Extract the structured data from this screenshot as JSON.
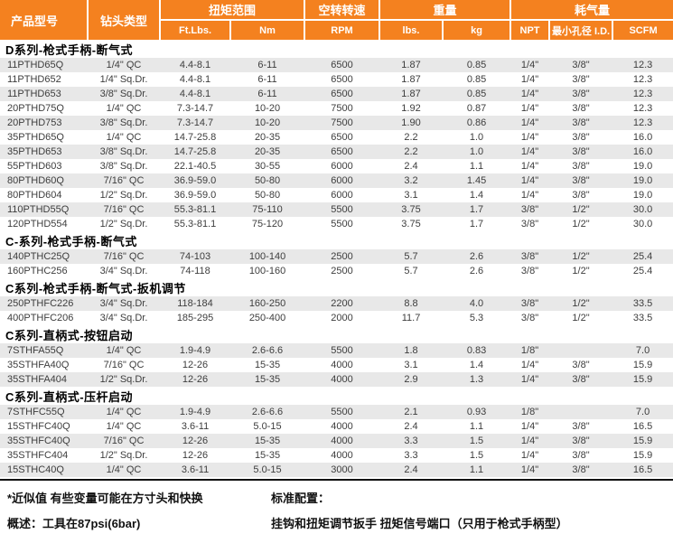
{
  "header": {
    "product_model": "产品型号",
    "drill_type": "钻头类型",
    "torque_range": "扭矩范围",
    "free_speed": "空转转速",
    "weight": "重量",
    "air_consumption": "耗气量",
    "sub": {
      "ftlbs": "Ft.Lbs.",
      "nm": "Nm",
      "rpm": "RPM",
      "lbs": "lbs.",
      "kg": "kg",
      "npt": "NPT",
      "min_id": "最小孔径 I.D.",
      "scfm": "SCFM"
    }
  },
  "sections": [
    {
      "title": "D系列-枪式手柄-断气式",
      "rows": [
        [
          "11PTHD65Q",
          "1/4\" QC",
          "4.4-8.1",
          "6-11",
          "6500",
          "1.87",
          "0.85",
          "1/4\"",
          "3/8\"",
          "12.3"
        ],
        [
          "11PTHD652",
          "1/4\" Sq.Dr.",
          "4.4-8.1",
          "6-11",
          "6500",
          "1.87",
          "0.85",
          "1/4\"",
          "3/8\"",
          "12.3"
        ],
        [
          "11PTHD653",
          "3/8\" Sq.Dr.",
          "4.4-8.1",
          "6-11",
          "6500",
          "1.87",
          "0.85",
          "1/4\"",
          "3/8\"",
          "12.3"
        ],
        [
          "20PTHD75Q",
          "1/4\" QC",
          "7.3-14.7",
          "10-20",
          "7500",
          "1.92",
          "0.87",
          "1/4\"",
          "3/8\"",
          "12.3"
        ],
        [
          "20PTHD753",
          "3/8\" Sq.Dr.",
          "7.3-14.7",
          "10-20",
          "7500",
          "1.90",
          "0.86",
          "1/4\"",
          "3/8\"",
          "12.3"
        ],
        [
          "35PTHD65Q",
          "1/4\" QC",
          "14.7-25.8",
          "20-35",
          "6500",
          "2.2",
          "1.0",
          "1/4\"",
          "3/8\"",
          "16.0"
        ],
        [
          "35PTHD653",
          "3/8\" Sq.Dr.",
          "14.7-25.8",
          "20-35",
          "6500",
          "2.2",
          "1.0",
          "1/4\"",
          "3/8\"",
          "16.0"
        ],
        [
          "55PTHD603",
          "3/8\" Sq.Dr.",
          "22.1-40.5",
          "30-55",
          "6000",
          "2.4",
          "1.1",
          "1/4\"",
          "3/8\"",
          "19.0"
        ],
        [
          "80PTHD60Q",
          "7/16\" QC",
          "36.9-59.0",
          "50-80",
          "6000",
          "3.2",
          "1.45",
          "1/4\"",
          "3/8\"",
          "19.0"
        ],
        [
          "80PTHD604",
          "1/2\" Sq.Dr.",
          "36.9-59.0",
          "50-80",
          "6000",
          "3.1",
          "1.4",
          "1/4\"",
          "3/8\"",
          "19.0"
        ],
        [
          "110PTHD55Q",
          "7/16\" QC",
          "55.3-81.1",
          "75-110",
          "5500",
          "3.75",
          "1.7",
          "3/8\"",
          "1/2\"",
          "30.0"
        ],
        [
          "120PTHD554",
          "1/2\" Sq.Dr.",
          "55.3-81.1",
          "75-120",
          "5500",
          "3.75",
          "1.7",
          "3/8\"",
          "1/2\"",
          "30.0"
        ]
      ]
    },
    {
      "title": "C-系列-枪式手柄-断气式",
      "rows": [
        [
          "140PTHC25Q",
          "7/16\" QC",
          "74-103",
          "100-140",
          "2500",
          "5.7",
          "2.6",
          "3/8\"",
          "1/2\"",
          "25.4"
        ],
        [
          "160PTHC256",
          "3/4\" Sq.Dr.",
          "74-118",
          "100-160",
          "2500",
          "5.7",
          "2.6",
          "3/8\"",
          "1/2\"",
          "25.4"
        ]
      ]
    },
    {
      "title": "C系列-枪式手柄-断气式-扳机调节",
      "rows": [
        [
          "250PTHFC226",
          "3/4\" Sq.Dr.",
          "118-184",
          "160-250",
          "2200",
          "8.8",
          "4.0",
          "3/8\"",
          "1/2\"",
          "33.5"
        ],
        [
          "400PTHFC206",
          "3/4\" Sq.Dr.",
          "185-295",
          "250-400",
          "2000",
          "11.7",
          "5.3",
          "3/8\"",
          "1/2\"",
          "33.5"
        ]
      ]
    },
    {
      "title": "C系列-直柄式-按钮启动",
      "rows": [
        [
          "7STHFA55Q",
          "1/4\" QC",
          "1.9-4.9",
          "2.6-6.6",
          "5500",
          "1.8",
          "0.83",
          "1/8\"",
          "",
          "7.0"
        ],
        [
          "35STHFA40Q",
          "7/16\" QC",
          "12-26",
          "15-35",
          "4000",
          "3.1",
          "1.4",
          "1/4\"",
          "3/8\"",
          "15.9"
        ],
        [
          "35STHFA404",
          "1/2\" Sq.Dr.",
          "12-26",
          "15-35",
          "4000",
          "2.9",
          "1.3",
          "1/4\"",
          "3/8\"",
          "15.9"
        ]
      ]
    },
    {
      "title": "C系列-直柄式-压杆启动",
      "rows": [
        [
          "7STHFC55Q",
          "1/4\" QC",
          "1.9-4.9",
          "2.6-6.6",
          "5500",
          "2.1",
          "0.93",
          "1/8\"",
          "",
          "7.0"
        ],
        [
          "15STHFC40Q",
          "1/4\" QC",
          "3.6-11",
          "5.0-15",
          "4000",
          "2.4",
          "1.1",
          "1/4\"",
          "3/8\"",
          "16.5"
        ],
        [
          "35STHFC40Q",
          "7/16\" QC",
          "12-26",
          "15-35",
          "4000",
          "3.3",
          "1.5",
          "1/4\"",
          "3/8\"",
          "15.9"
        ],
        [
          "35STHFC404",
          "1/2\" Sq.Dr.",
          "12-26",
          "15-35",
          "4000",
          "3.3",
          "1.5",
          "1/4\"",
          "3/8\"",
          "15.9"
        ],
        [
          "15STHC40Q",
          "1/4\" QC",
          "3.6-11",
          "5.0-15",
          "3000",
          "2.4",
          "1.1",
          "1/4\"",
          "3/8\"",
          "16.5"
        ]
      ]
    }
  ],
  "footer": {
    "note1": "*近似值 有些变量可能在方寸头和快换",
    "note2": "概述：工具在87psi(6bar)",
    "std_title": "标准配置：",
    "std_items": "挂钩和扭矩调节扳手 扭矩信号端口（只用于枪式手柄型）"
  },
  "colors": {
    "accent_orange": "#F4811F",
    "stripe_gray": "#E8E8E8",
    "header_text": "#FFFFFF",
    "body_text": "#3D3D3D"
  }
}
